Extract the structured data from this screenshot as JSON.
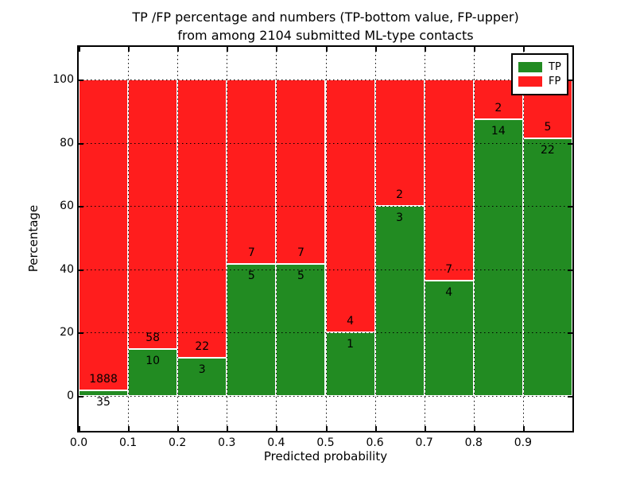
{
  "title": {
    "line1": "TP /FP percentage and numbers (TP-bottom value, FP-upper)",
    "line2": "from among 2104 submitted ML-type contacts"
  },
  "axes": {
    "xlabel": "Predicted probability",
    "ylabel": "Percentage",
    "x_tick_labels": [
      "0.0",
      "0.1",
      "0.2",
      "0.3",
      "0.4",
      "0.5",
      "0.6",
      "0.7",
      "0.8",
      "0.9"
    ],
    "y_tick_labels": [
      "0",
      "20",
      "40",
      "60",
      "80",
      "100"
    ]
  },
  "legend": {
    "items": [
      {
        "label": "TP",
        "color": "#228B22"
      },
      {
        "label": "FP",
        "color": "#ff1d1d"
      }
    ]
  },
  "chart_data": {
    "type": "bar",
    "variant": "stacked-100-percent",
    "title": "TP /FP percentage and numbers (TP-bottom value, FP-upper) from among 2104 submitted ML-type contacts",
    "xlabel": "Predicted probability",
    "ylabel": "Percentage",
    "total_contacts": 2104,
    "x_bins": [
      "0.0-0.1",
      "0.1-0.2",
      "0.2-0.3",
      "0.3-0.4",
      "0.4-0.5",
      "0.5-0.6",
      "0.6-0.7",
      "0.7-0.8",
      "0.8-0.9",
      "0.9-1.0"
    ],
    "x_ticks": [
      0.0,
      0.1,
      0.2,
      0.3,
      0.4,
      0.5,
      0.6,
      0.7,
      0.8,
      0.9
    ],
    "y_ticks": [
      0,
      20,
      40,
      60,
      80,
      100
    ],
    "ylim": [
      -11,
      110
    ],
    "xlim": [
      0.0,
      1.0
    ],
    "grid": "dotted",
    "legend_position": "upper right",
    "series": [
      {
        "name": "TP",
        "color": "#228B22",
        "counts": [
          35,
          10,
          3,
          5,
          5,
          1,
          3,
          4,
          14,
          22
        ]
      },
      {
        "name": "FP",
        "color": "#ff1d1d",
        "counts": [
          1888,
          58,
          22,
          7,
          7,
          4,
          2,
          7,
          2,
          5
        ]
      }
    ],
    "tp_percent": [
      1.82,
      14.71,
      12.0,
      41.67,
      41.67,
      20.0,
      60.0,
      36.36,
      87.5,
      81.48
    ]
  }
}
